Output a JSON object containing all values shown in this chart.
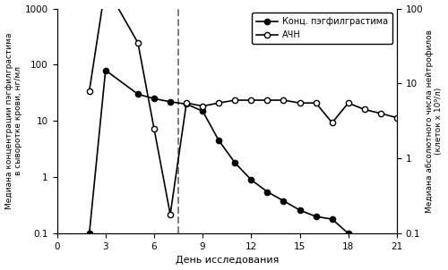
{
  "peg_x": [
    2,
    3,
    5,
    6,
    7,
    8,
    9,
    10,
    11,
    12,
    13,
    14,
    15,
    16,
    17,
    18
  ],
  "peg_y": [
    0.1,
    80,
    30,
    25,
    22,
    20,
    15,
    4.5,
    1.8,
    0.9,
    0.55,
    0.38,
    0.26,
    0.2,
    0.18,
    0.1
  ],
  "anc_x": [
    2,
    3,
    5,
    6,
    7,
    8,
    9,
    10,
    11,
    12,
    13,
    14,
    15,
    16,
    17,
    18,
    19,
    20,
    21
  ],
  "anc_y": [
    8,
    200,
    35,
    2.5,
    0.18,
    5.5,
    5.0,
    5.5,
    6.0,
    6.0,
    6.0,
    6.0,
    5.5,
    5.5,
    3.0,
    5.5,
    4.5,
    4.0,
    3.5
  ],
  "vline_x": 7.5,
  "ylabel_left": "Медиана концентрации пэгфилграстима\nв сыворотке крови, нг/мл",
  "ylabel_right": "Медиана абсолютного числа нейтрофилов\n(клеток х 10⁹/л)",
  "xlabel": "День исследования",
  "legend_peg": "Конц. пэгфилграстима",
  "legend_anc": "АЧН",
  "xlim": [
    0,
    21
  ],
  "ylim_left": [
    0.1,
    1000
  ],
  "ylim_right": [
    0.1,
    100
  ],
  "xticks": [
    0,
    3,
    6,
    9,
    12,
    15,
    18,
    21
  ],
  "background_color": "#ffffff"
}
